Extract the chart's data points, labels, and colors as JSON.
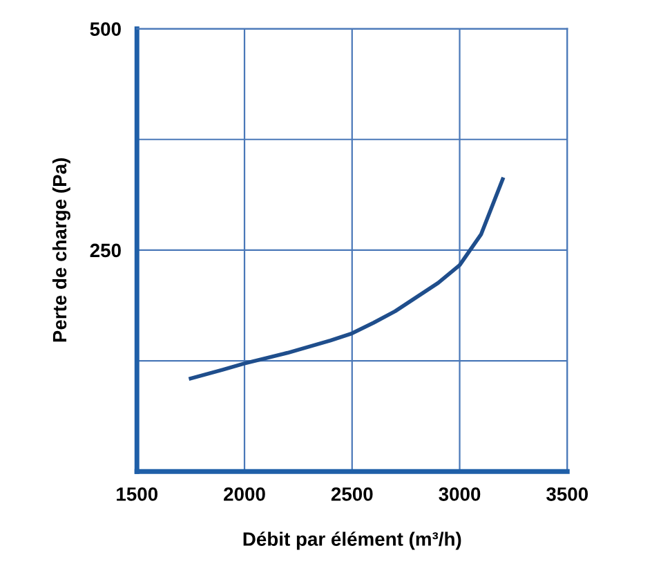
{
  "chart_data": {
    "type": "line",
    "xlabel": "Débit par élément (m³/h)",
    "ylabel": "Perte de charge (Pa)",
    "x": [
      1750,
      1900,
      2000,
      2200,
      2400,
      2500,
      2600,
      2700,
      2800,
      2900,
      3000,
      3100,
      3200
    ],
    "series": [
      {
        "color": "#1f4e8c",
        "values": [
          105,
          115,
          122,
          134,
          148,
          156,
          168,
          181,
          197,
          213,
          233,
          268,
          330
        ]
      }
    ],
    "xlim": [
      1500,
      3500
    ],
    "ylim": [
      0,
      500
    ],
    "xticks": [
      1500,
      2000,
      2500,
      3000,
      3500
    ],
    "yticks": [
      {
        "value": 125,
        "label": null
      },
      250,
      {
        "value": 375,
        "label": null
      },
      500
    ],
    "grid": true,
    "line_style": "solid",
    "marker": "none"
  }
}
